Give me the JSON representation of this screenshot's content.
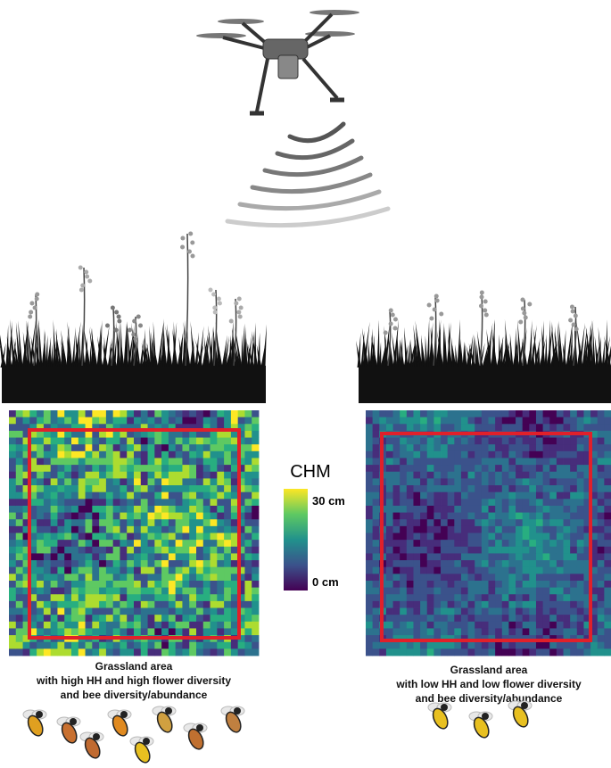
{
  "legend": {
    "title": "CHM",
    "high_label": "30 cm",
    "low_label": "0 cm"
  },
  "left_panel": {
    "caption": [
      "Grassland area",
      "with high HH and high flower diversity",
      "and bee diversity/abundance"
    ]
  },
  "right_panel": {
    "caption": [
      "Grassland area",
      "with low HH and low flower diversity",
      "and bee diversity/abundance"
    ]
  }
}
